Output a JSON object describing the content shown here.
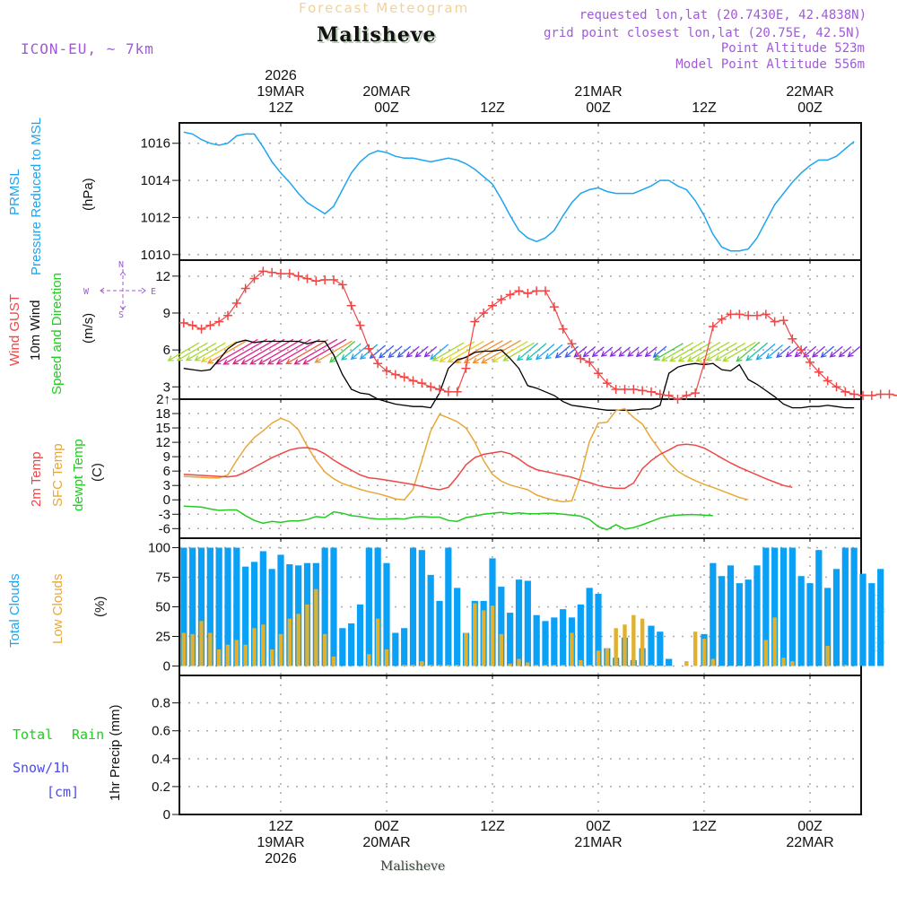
{
  "header": {
    "subtitle": "Forecast Meteogram",
    "location": "Malisheve",
    "model": "ICON-EU, ~ 7km",
    "requested": "requested lon,lat (20.7430E, 42.4838N)",
    "grid_point": "grid point closest lon,lat (20.75E, 42.5N)",
    "point_altitude": "Point Altitude 523m",
    "model_altitude": "Model Point Altitude 556m"
  },
  "top_axis": [
    {
      "line1": "2026",
      "line2": "19MAR",
      "line3": "12Z"
    },
    {
      "line1": "",
      "line2": "20MAR",
      "line3": "00Z"
    },
    {
      "line1": "",
      "line2": "",
      "line3": "12Z"
    },
    {
      "line1": "",
      "line2": "21MAR",
      "line3": "00Z"
    },
    {
      "line1": "",
      "line2": "",
      "line3": "12Z"
    },
    {
      "line1": "",
      "line2": "22MAR",
      "line3": "00Z"
    }
  ],
  "bottom_axis": [
    {
      "line1": "12Z",
      "line2": "19MAR",
      "line3": "2026"
    },
    {
      "line1": "00Z",
      "line2": "20MAR",
      "line3": ""
    },
    {
      "line1": "12Z",
      "line2": "",
      "line3": ""
    },
    {
      "line1": "00Z",
      "line2": "21MAR",
      "line3": ""
    },
    {
      "line1": "12Z",
      "line2": "",
      "line3": ""
    },
    {
      "line1": "00Z",
      "line2": "22MAR",
      "line3": ""
    }
  ],
  "footer_location": "Malisheve",
  "watermark": "by Angel",
  "labels": {
    "pressure": {
      "l1": "PRMSL",
      "l2": "Pressure Reduced to MSL",
      "unit": "(hPa)"
    },
    "wind": {
      "gust": "Wind GUST",
      "wind10": "10m Wind",
      "dir": "Speed and Direction",
      "unit": "(m/s)",
      "compass": {
        "n": "N",
        "s": "S",
        "w": "W",
        "e": "E"
      }
    },
    "temp": {
      "t2m": "2m Temp",
      "sfc": "SFC Temp",
      "dew": "dewpt Temp",
      "unit": "(C)"
    },
    "clouds": {
      "total": "Total Clouds",
      "low": "Low Clouds",
      "unit": "(%)"
    },
    "precip": {
      "total": "Total",
      "rain": "Rain",
      "snow": "Snow/1h",
      "cm": "[cm]",
      "unit": "1hr Precip (mm)"
    }
  },
  "colors": {
    "pressure": "#1ea5f0",
    "gust": "#f04646",
    "wind": "#000000",
    "t2m": "#f04646",
    "sfc": "#e8a838",
    "dew": "#22cc22",
    "total_clouds": "#0aa0f5",
    "low_clouds": "#e0b030",
    "label_green": "#22cc22",
    "label_blue": "#4a4af0",
    "label_purple": "#a05ad8"
  },
  "chart_data": [
    {
      "type": "line",
      "title": "PRMSL Pressure Reduced to MSL",
      "ylabel": "hPa",
      "ylim": [
        1009.7,
        1017.1
      ],
      "yticks": [
        1010,
        1012,
        1014,
        1016
      ],
      "x_hours_from_19MAR00Z_start": 1,
      "x_step_hours": 1,
      "series": [
        {
          "name": "PRMSL",
          "values": [
            1016.6,
            1016.5,
            1016.2,
            1016.0,
            1015.9,
            1016.0,
            1016.4,
            1016.5,
            1016.5,
            1015.8,
            1015.0,
            1014.4,
            1013.9,
            1013.3,
            1012.8,
            1012.5,
            1012.2,
            1012.6,
            1013.5,
            1014.4,
            1015.0,
            1015.4,
            1015.6,
            1015.5,
            1015.3,
            1015.2,
            1015.2,
            1015.1,
            1015.0,
            1015.1,
            1015.2,
            1015.1,
            1014.9,
            1014.6,
            1014.2,
            1013.8,
            1013.0,
            1012.1,
            1011.3,
            1010.9,
            1010.7,
            1010.9,
            1011.3,
            1012.1,
            1012.8,
            1013.3,
            1013.5,
            1013.6,
            1013.4,
            1013.3,
            1013.3,
            1013.3,
            1013.5,
            1013.7,
            1014.0,
            1014.0,
            1013.7,
            1013.5,
            1012.9,
            1012.1,
            1011.1,
            1010.4,
            1010.2,
            1010.2,
            1010.3,
            1010.9,
            1011.8,
            1012.7,
            1013.3,
            1013.9,
            1014.4,
            1014.8,
            1015.1,
            1015.1,
            1015.3,
            1015.7,
            1016.1
          ]
        }
      ]
    },
    {
      "type": "line",
      "title": "Wind GUST / 10m Wind Speed and Direction",
      "ylabel": "m/s",
      "ylim": [
        2,
        13.3
      ],
      "yticks": [
        3,
        6,
        9,
        12
      ],
      "series": [
        {
          "name": "Wind GUST",
          "values": [
            8.2,
            8.0,
            7.7,
            8.0,
            8.3,
            8.8,
            9.8,
            11.0,
            11.8,
            12.4,
            12.3,
            12.2,
            12.2,
            12.0,
            11.8,
            11.6,
            11.7,
            11.7,
            11.3,
            9.6,
            8.0,
            6.1,
            4.9,
            4.3,
            4.0,
            3.8,
            3.5,
            3.3,
            3.0,
            2.8,
            2.6,
            2.6,
            4.5,
            8.3,
            9.0,
            9.6,
            10.1,
            10.5,
            10.8,
            10.6,
            10.8,
            10.8,
            9.5,
            7.7,
            6.5,
            5.3,
            5.0,
            4.1,
            3.3,
            2.8,
            2.8,
            2.8,
            2.7,
            2.6,
            2.4,
            2.3,
            2.0,
            2.3,
            2.5,
            4.9,
            7.9,
            8.5,
            8.9,
            8.9,
            8.8,
            8.8,
            8.9,
            8.3,
            8.4,
            6.9,
            6.0,
            5.0,
            4.2,
            3.5,
            3.0,
            2.6,
            2.4,
            2.3,
            2.3,
            2.4,
            2.4,
            2.3,
            2.1
          ]
        },
        {
          "name": "10m Wind",
          "values": [
            4.5,
            4.4,
            4.3,
            4.4,
            5.2,
            6.1,
            6.6,
            6.8,
            6.6,
            6.7,
            6.7,
            6.7,
            6.7,
            6.7,
            6.5,
            6.7,
            6.7,
            5.6,
            4.0,
            2.8,
            2.5,
            2.4,
            2.0,
            1.8,
            1.6,
            1.5,
            1.4,
            1.4,
            1.3,
            2.5,
            4.5,
            5.2,
            5.4,
            5.8,
            5.9,
            5.9,
            6.0,
            5.3,
            4.5,
            3.1,
            2.9,
            2.6,
            2.3,
            1.8,
            1.5,
            1.4,
            1.3,
            1.2,
            1.1,
            1.1,
            1.1,
            1.1,
            1.2,
            1.2,
            1.5,
            4.1,
            4.6,
            4.8,
            4.9,
            4.8,
            4.9,
            4.4,
            4.3,
            4.8,
            3.6,
            3.2,
            2.7,
            2.2,
            1.6,
            1.3,
            1.3,
            1.4,
            1.4,
            1.5,
            1.4,
            1.3,
            1.3
          ]
        }
      ],
      "wind_direction": "mostly from NE/ENE (arrows pointing SW); colored by speed"
    },
    {
      "type": "line",
      "title": "2m Temp / SFC Temp / dewpt Temp",
      "ylabel": "C",
      "ylim": [
        -8,
        21
      ],
      "yticks": [
        -6,
        -3,
        0,
        3,
        6,
        9,
        12,
        15,
        18,
        21
      ],
      "series": [
        {
          "name": "2m Temp",
          "values": [
            5.3,
            5.2,
            5.1,
            5.0,
            4.9,
            4.8,
            5.0,
            5.8,
            6.8,
            7.8,
            8.8,
            9.6,
            10.4,
            10.8,
            10.9,
            10.5,
            9.6,
            8.3,
            7.2,
            6.2,
            5.2,
            4.6,
            4.4,
            4.1,
            3.8,
            3.5,
            3.2,
            2.8,
            2.4,
            2.1,
            2.6,
            4.8,
            7.3,
            8.8,
            9.5,
            9.8,
            10.1,
            9.6,
            8.5,
            7.2,
            6.3,
            5.9,
            5.5,
            5.1,
            4.7,
            4.1,
            3.6,
            3.0,
            2.6,
            2.4,
            2.4,
            3.5,
            6.5,
            8.2,
            9.5,
            10.4,
            11.4,
            11.6,
            11.4,
            10.8,
            9.8,
            8.7,
            7.7,
            6.8,
            6.0,
            5.2,
            4.4,
            3.7,
            3.0,
            2.6
          ]
        },
        {
          "name": "SFC Temp",
          "values": [
            4.9,
            4.8,
            4.7,
            4.6,
            4.6,
            5.2,
            8.2,
            10.9,
            13.0,
            14.4,
            16.0,
            17.0,
            16.3,
            14.6,
            11.2,
            8.2,
            5.8,
            4.4,
            3.4,
            2.8,
            2.2,
            1.7,
            1.3,
            0.8,
            0.2,
            0.0,
            2.2,
            8.2,
            14.4,
            17.8,
            17.1,
            16.3,
            15.0,
            12.1,
            8.2,
            5.3,
            3.9,
            3.1,
            2.6,
            2.1,
            1.0,
            0.4,
            -0.1,
            -0.4,
            -0.2,
            5.0,
            12.2,
            16.0,
            16.2,
            18.6,
            19.0,
            17.2,
            15.8,
            12.8,
            10.3,
            7.8,
            6.0,
            4.9,
            4.0,
            3.2,
            2.6,
            1.9,
            1.2,
            0.5,
            0.0
          ]
        },
        {
          "name": "dewpt Temp",
          "values": [
            -1.3,
            -1.4,
            -1.5,
            -1.9,
            -2.2,
            -2.1,
            -2.1,
            -3.3,
            -4.3,
            -4.9,
            -4.5,
            -4.7,
            -4.4,
            -4.4,
            -4.1,
            -3.5,
            -3.7,
            -2.5,
            -2.8,
            -3.3,
            -3.5,
            -3.8,
            -4.0,
            -4.0,
            -3.9,
            -4.0,
            -3.6,
            -3.5,
            -3.6,
            -3.6,
            -4.3,
            -4.5,
            -3.7,
            -3.4,
            -3.0,
            -2.8,
            -2.6,
            -2.9,
            -2.7,
            -2.9,
            -2.9,
            -2.8,
            -2.8,
            -3.0,
            -3.2,
            -3.4,
            -4.1,
            -5.6,
            -6.2,
            -5.2,
            -6.1,
            -5.8,
            -5.2,
            -4.5,
            -3.8,
            -3.4,
            -3.2,
            -3.1,
            -3.1,
            -3.2,
            -3.3
          ]
        }
      ]
    },
    {
      "type": "bar",
      "title": "Total Clouds / Low Clouds",
      "ylabel": "%",
      "ylim": [
        -8,
        108
      ],
      "yticks": [
        0,
        25,
        50,
        75,
        100
      ],
      "series": [
        {
          "name": "Total Clouds",
          "values": [
            100,
            100,
            100,
            100,
            100,
            100,
            100,
            84,
            88,
            97,
            82,
            94,
            86,
            85,
            87,
            87,
            100,
            100,
            32,
            36,
            52,
            100,
            100,
            87,
            28,
            32,
            100,
            98,
            77,
            55,
            100,
            66,
            28,
            55,
            55,
            91,
            67,
            45,
            73,
            72,
            43,
            38,
            41,
            48,
            41,
            52,
            66,
            61,
            15,
            7,
            24,
            5,
            15,
            34,
            29,
            6,
            0,
            0,
            0,
            27,
            87,
            76,
            85,
            70,
            73,
            85,
            100,
            100,
            100,
            100,
            76,
            70,
            98,
            66,
            82,
            100,
            100,
            78,
            70,
            82
          ]
        },
        {
          "name": "Low Clouds",
          "values": [
            28,
            27,
            38,
            28,
            14,
            18,
            22,
            18,
            32,
            35,
            14,
            27,
            40,
            44,
            52,
            65,
            27,
            8,
            0,
            0,
            0,
            10,
            40,
            14,
            0,
            1,
            1,
            4,
            1,
            1,
            1,
            1,
            28,
            53,
            47,
            51,
            27,
            2,
            6,
            3,
            1,
            1,
            1,
            1,
            28,
            5,
            1,
            13,
            15,
            32,
            35,
            43,
            40,
            1,
            0,
            0,
            0,
            4,
            29,
            23,
            6,
            0,
            0,
            0,
            0,
            0,
            22,
            41,
            7,
            4,
            0,
            0,
            0,
            17,
            0,
            1,
            0,
            0,
            0,
            0
          ]
        }
      ]
    },
    {
      "type": "line",
      "title": "1hr Precip",
      "ylabel": "1hr Precip (mm)",
      "ylim": [
        0,
        1.0
      ],
      "yticks": [
        0,
        0.2,
        0.4,
        0.6,
        0.8
      ],
      "series": [
        {
          "name": "Total",
          "values": []
        },
        {
          "name": "Rain",
          "values": []
        },
        {
          "name": "Snow/1h",
          "values": []
        }
      ]
    }
  ]
}
